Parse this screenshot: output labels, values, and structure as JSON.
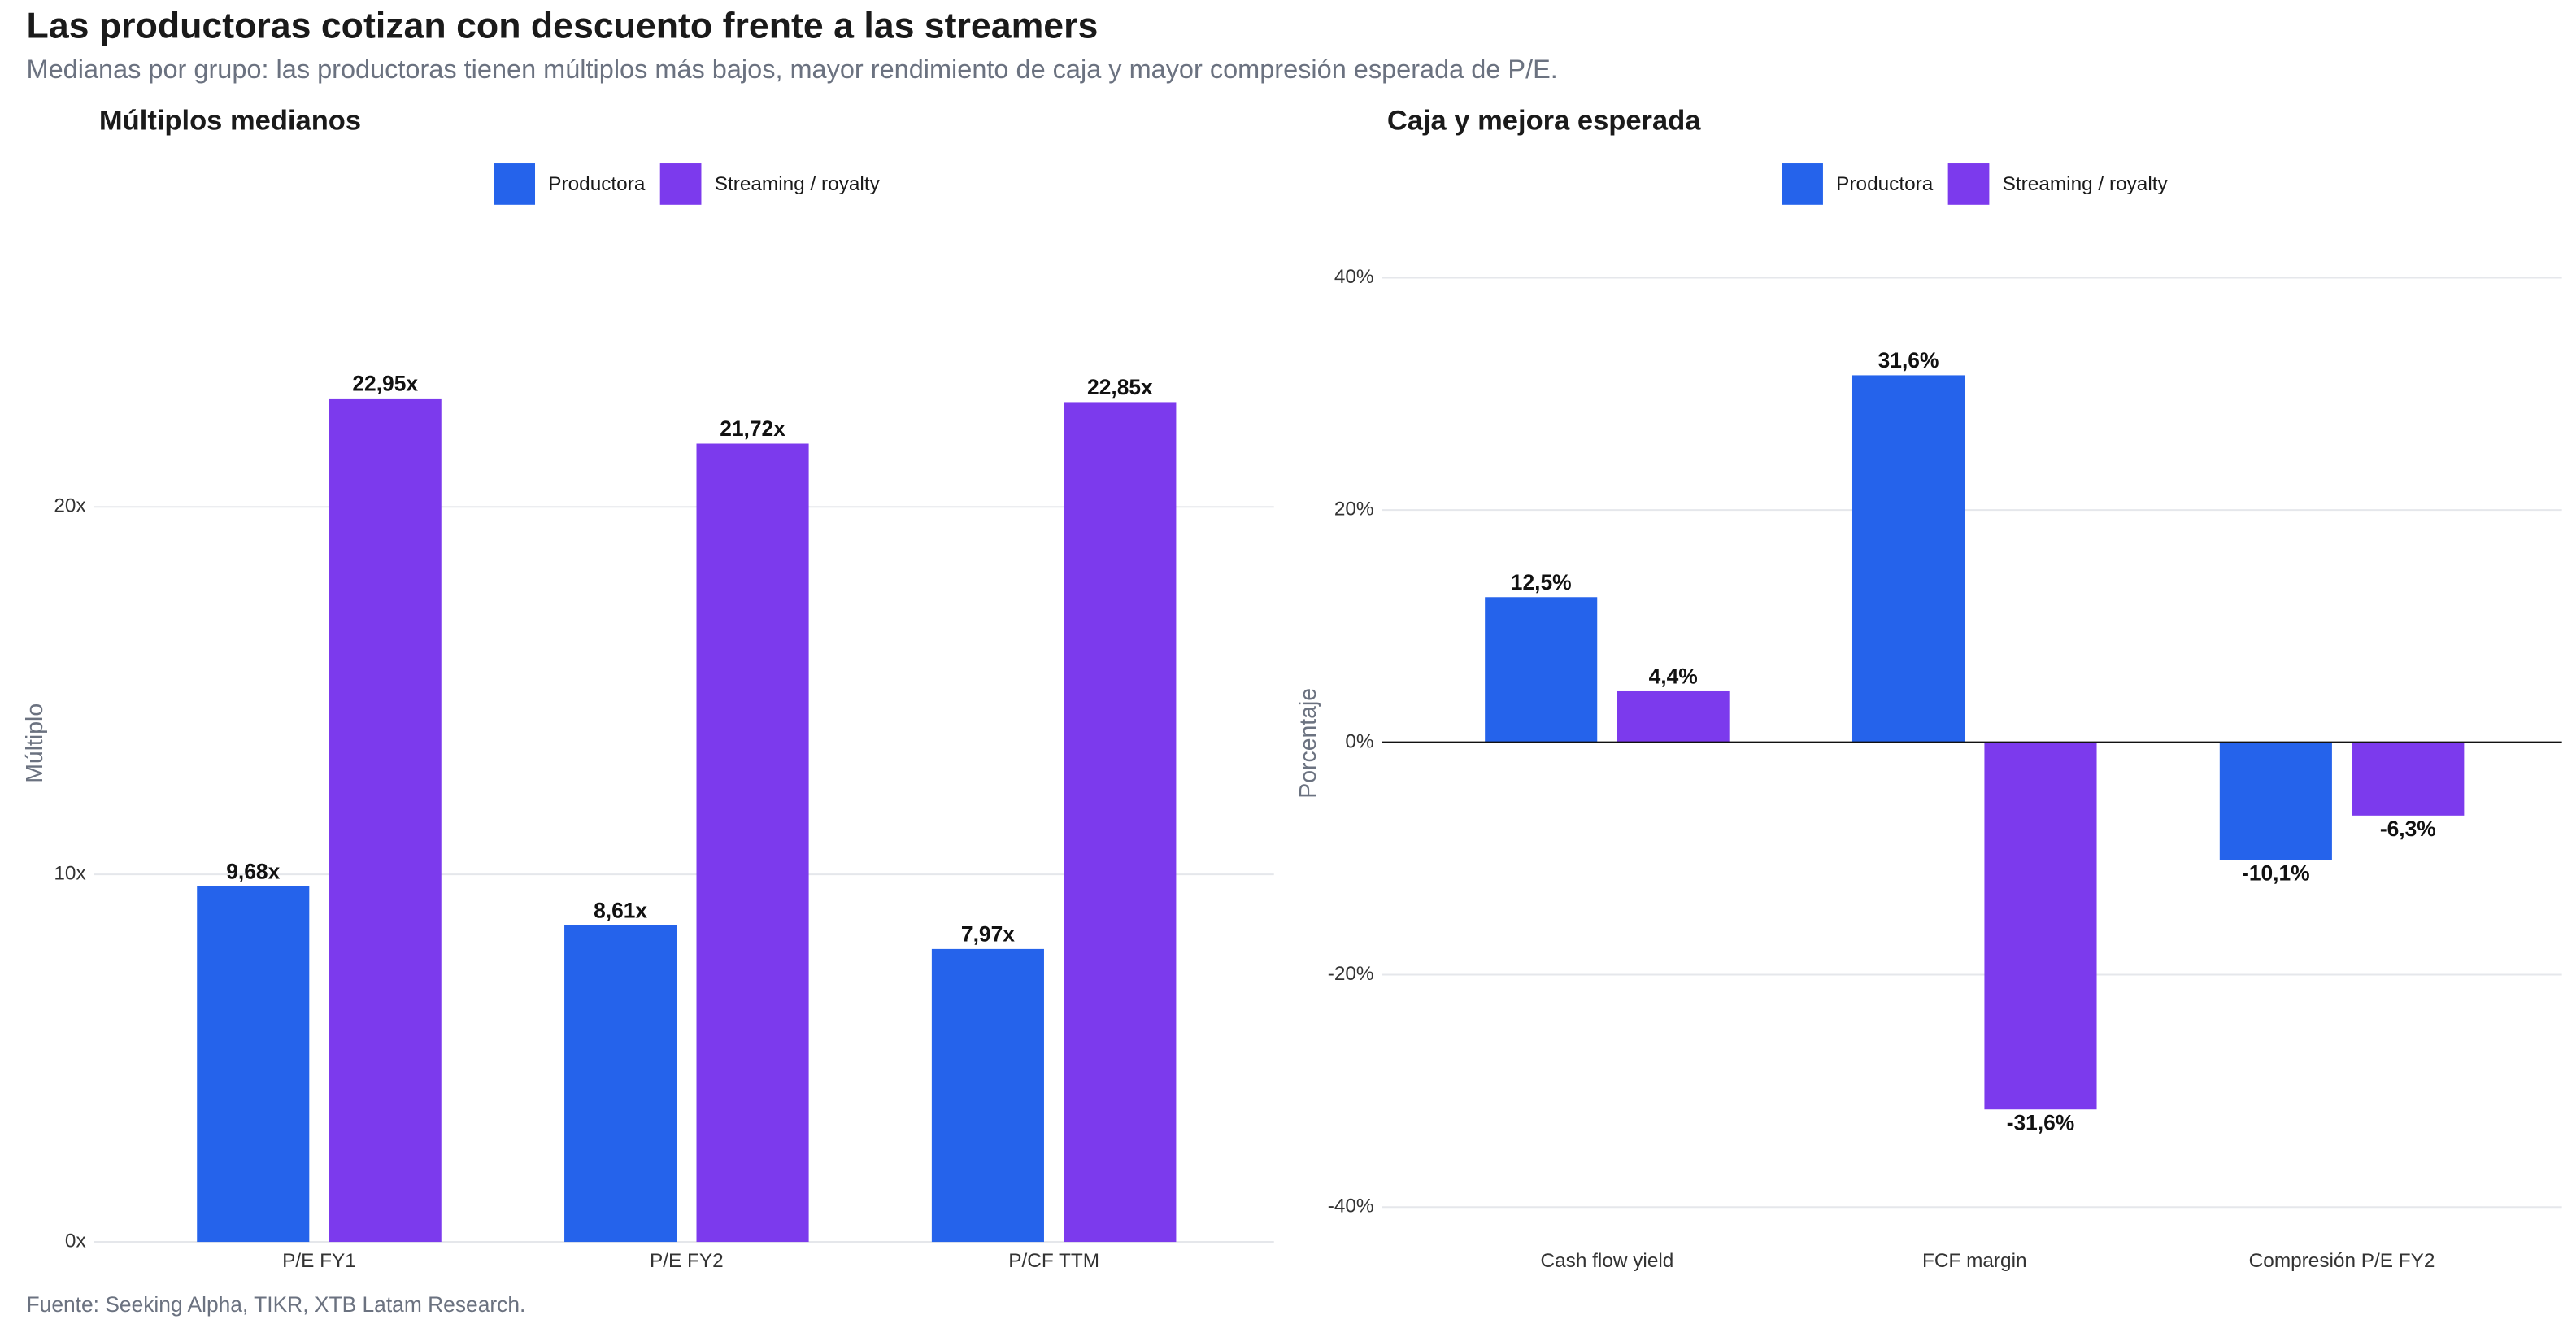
{
  "title": "Las productoras cotizan con descuento frente a las streamers",
  "subtitle": "Medianas por grupo: las productoras tienen múltiplos más bajos, mayor rendimiento de caja y mayor compresión esperada de P/E.",
  "source": "Fuente: Seeking Alpha, TIKR, XTB Latam Research.",
  "chart_data": [
    {
      "type": "bar",
      "title": "Múltiplos medianos",
      "y_label": "Múltiplo",
      "categories": [
        "P/E FY1",
        "P/E FY2",
        "P/CF TTM"
      ],
      "series": [
        {
          "name": "Productora",
          "color": "#2563eb",
          "values": [
            9.68,
            8.61,
            7.97
          ],
          "value_labels": [
            "9,68x",
            "8,61x",
            "7,97x"
          ]
        },
        {
          "name": "Streaming / royalty",
          "color": "#7c3aed",
          "values": [
            22.95,
            21.72,
            22.85
          ],
          "value_labels": [
            "22,95x",
            "21,72x",
            "22,85x"
          ]
        }
      ],
      "ylim": [
        0,
        27.5
      ],
      "yticks": [
        {
          "value": 0,
          "label": "0x"
        },
        {
          "value": 10,
          "label": "10x"
        },
        {
          "value": 20,
          "label": "20x"
        }
      ],
      "grid": true,
      "legend": "top"
    },
    {
      "type": "bar",
      "title": "Caja y mejora esperada",
      "y_label": "Porcentaje",
      "categories": [
        "Cash flow yield",
        "FCF margin",
        "Compresión P/E FY2"
      ],
      "series": [
        {
          "name": "Productora",
          "color": "#2563eb",
          "values": [
            12.5,
            31.6,
            -10.1
          ],
          "value_labels": [
            "12,5%",
            "31,6%",
            "-10,1%"
          ]
        },
        {
          "name": "Streaming / royalty",
          "color": "#7c3aed",
          "values": [
            4.4,
            -31.6,
            -6.3
          ],
          "value_labels": [
            "4,4%",
            "-31,6%",
            "-6,3%"
          ]
        }
      ],
      "ylim": [
        -43,
        44
      ],
      "yticks": [
        {
          "value": -40,
          "label": "-40%"
        },
        {
          "value": -20,
          "label": "-20%"
        },
        {
          "value": 0,
          "label": "0%"
        },
        {
          "value": 20,
          "label": "20%"
        },
        {
          "value": 40,
          "label": "40%"
        }
      ],
      "grid": true,
      "zero_line": true,
      "legend": "top"
    }
  ]
}
